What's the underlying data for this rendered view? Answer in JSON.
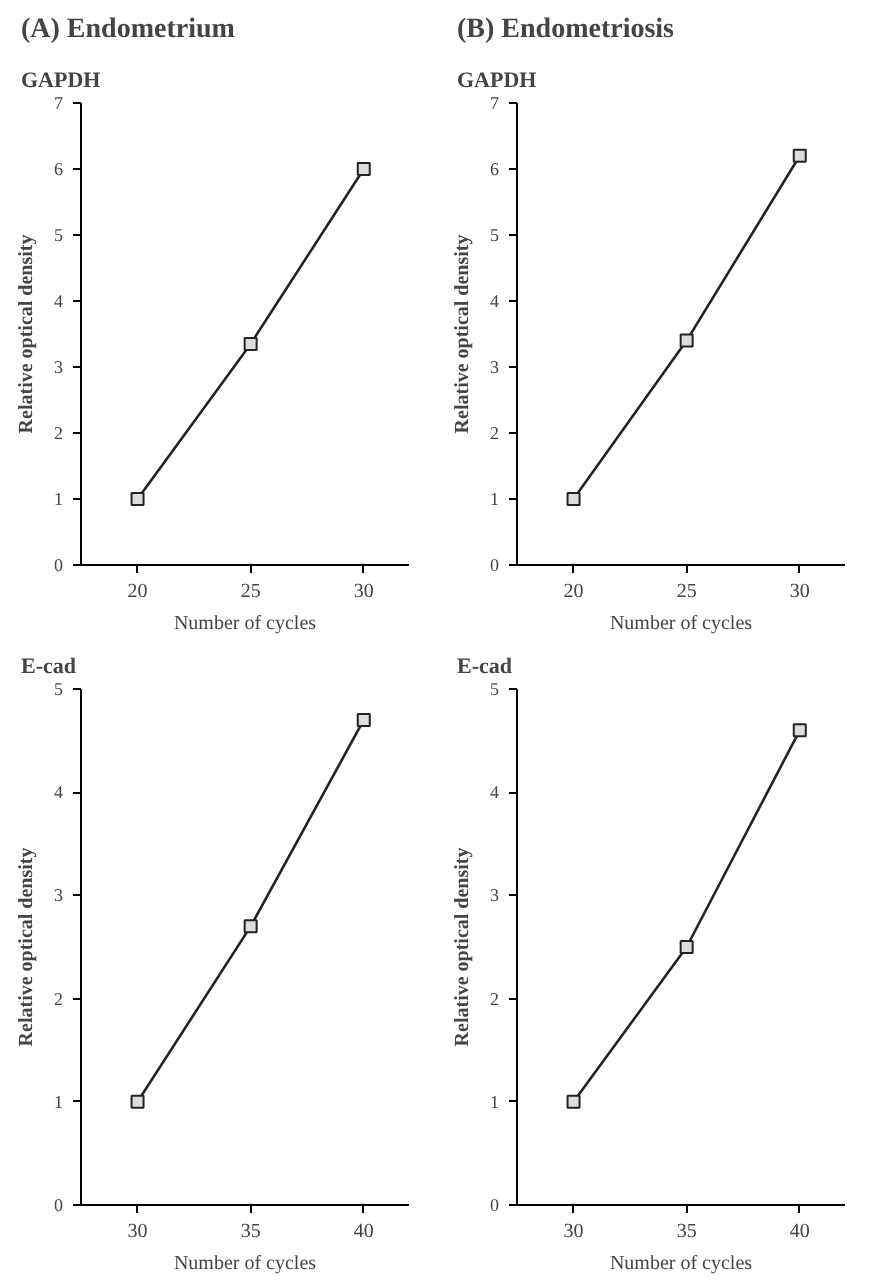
{
  "chart_data": [
    {
      "type": "line",
      "title": "(A) Endometrium",
      "subtitle": "GAPDH",
      "xlabel": "Number of cycles",
      "ylabel": "Relative optical density",
      "x": [
        20,
        25,
        30
      ],
      "series": [
        {
          "color": "#222222",
          "values": [
            1,
            3.35,
            6.0
          ]
        }
      ],
      "xlim": [
        17.5,
        32
      ],
      "ylim": [
        0,
        7
      ],
      "xticks": [
        20,
        25,
        30
      ],
      "yticks": [
        0,
        1,
        2,
        3,
        4,
        5,
        6,
        7
      ],
      "grid": false,
      "marker": "square",
      "line_style": "solid"
    },
    {
      "type": "line",
      "title": "(B) Endometriosis",
      "subtitle": "GAPDH",
      "xlabel": "Number of cycles",
      "ylabel": "Relative optical density",
      "x": [
        20,
        25,
        30
      ],
      "series": [
        {
          "color": "#222222",
          "values": [
            1,
            3.4,
            6.2
          ]
        }
      ],
      "xlim": [
        17.5,
        32
      ],
      "ylim": [
        0,
        7
      ],
      "xticks": [
        20,
        25,
        30
      ],
      "yticks": [
        0,
        1,
        2,
        3,
        4,
        5,
        6,
        7
      ],
      "grid": false,
      "marker": "square",
      "line_style": "solid"
    },
    {
      "type": "line",
      "subtitle": "E-cad",
      "xlabel": "Number of cycles",
      "ylabel": "Relative optical density",
      "x": [
        30,
        35,
        40
      ],
      "series": [
        {
          "color": "#222222",
          "values": [
            1,
            2.7,
            4.7
          ]
        }
      ],
      "xlim": [
        27.5,
        42
      ],
      "ylim": [
        0,
        5
      ],
      "xticks": [
        30,
        35,
        40
      ],
      "yticks": [
        0,
        1,
        2,
        3,
        4,
        5
      ],
      "grid": false,
      "marker": "square",
      "line_style": "solid"
    },
    {
      "type": "line",
      "subtitle": "E-cad",
      "xlabel": "Number of cycles",
      "ylabel": "Relative optical density",
      "x": [
        30,
        35,
        40
      ],
      "series": [
        {
          "color": "#222222",
          "values": [
            1,
            2.5,
            4.6
          ]
        }
      ],
      "xlim": [
        27.5,
        42
      ],
      "ylim": [
        0,
        5
      ],
      "xticks": [
        30,
        35,
        40
      ],
      "yticks": [
        0,
        1,
        2,
        3,
        4,
        5
      ],
      "grid": false,
      "marker": "square",
      "line_style": "solid"
    }
  ]
}
